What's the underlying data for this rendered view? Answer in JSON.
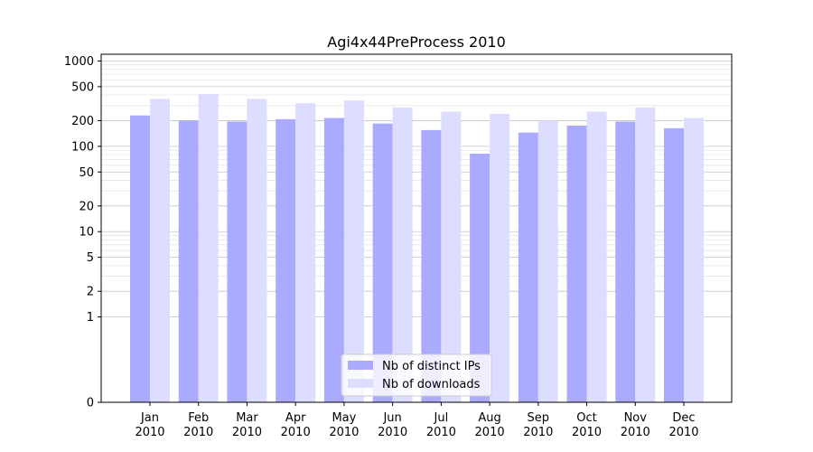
{
  "chart_data": {
    "type": "bar",
    "title": "Agi4x44PreProcess 2010",
    "xlabel": "",
    "ylabel": "",
    "yscale": "symlog",
    "ylim": [
      0,
      1200
    ],
    "yticks": [
      0,
      1,
      2,
      5,
      10,
      20,
      50,
      100,
      200,
      500,
      1000
    ],
    "categories": [
      "Jan\n2010",
      "Feb\n2010",
      "Mar\n2010",
      "Apr\n2010",
      "May\n2010",
      "Jun\n2010",
      "Jul\n2010",
      "Aug\n2010",
      "Sep\n2010",
      "Oct\n2010",
      "Nov\n2010",
      "Dec\n2010"
    ],
    "category_lines": [
      [
        "Jan",
        "2010"
      ],
      [
        "Feb",
        "2010"
      ],
      [
        "Mar",
        "2010"
      ],
      [
        "Apr",
        "2010"
      ],
      [
        "May",
        "2010"
      ],
      [
        "Jun",
        "2010"
      ],
      [
        "Jul",
        "2010"
      ],
      [
        "Aug",
        "2010"
      ],
      [
        "Sep",
        "2010"
      ],
      [
        "Oct",
        "2010"
      ],
      [
        "Nov",
        "2010"
      ],
      [
        "Dec",
        "2010"
      ]
    ],
    "series": [
      {
        "name": "Nb of distinct IPs",
        "color": "#aaaaff",
        "values": [
          230,
          200,
          195,
          208,
          215,
          185,
          155,
          82,
          145,
          175,
          195,
          163
        ]
      },
      {
        "name": "Nb of downloads",
        "color": "#ddddff",
        "values": [
          360,
          410,
          360,
          320,
          345,
          285,
          255,
          240,
          200,
          255,
          285,
          215
        ]
      }
    ],
    "grid": true,
    "legend_position": "bottom-center"
  }
}
